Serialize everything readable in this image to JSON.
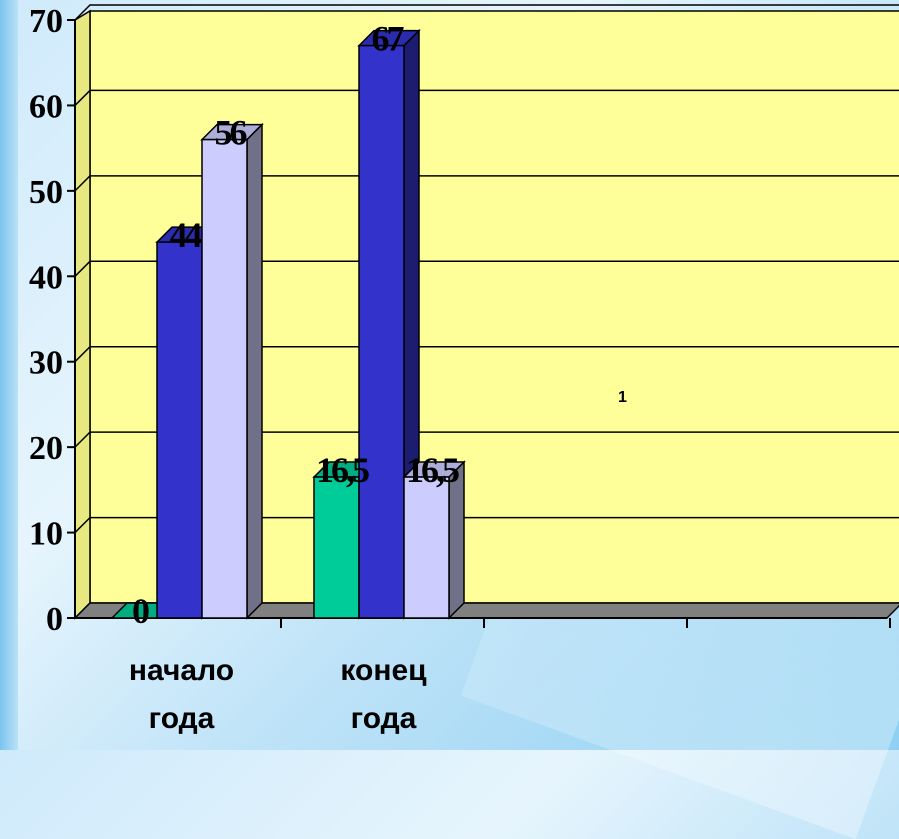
{
  "chart_data": {
    "type": "bar",
    "categories": [
      [
        "начало",
        "года"
      ],
      [
        "конец",
        "года"
      ]
    ],
    "series": [
      {
        "values": [
          0,
          16.5
        ],
        "color": "#00cc99"
      },
      {
        "values": [
          44,
          67
        ],
        "color": "#3333cc"
      },
      {
        "values": [
          56,
          16.5
        ],
        "color": "#ccccff"
      }
    ],
    "data_labels": [
      [
        "0",
        "44",
        "56"
      ],
      [
        "16,5",
        "67",
        "16,5"
      ]
    ],
    "ylim": [
      0,
      70
    ],
    "yticks": [
      "0",
      "10",
      "20",
      "30",
      "40",
      "50",
      "60",
      "70"
    ],
    "grid": true,
    "plot_background": "#ffff99",
    "annotation": "1"
  }
}
